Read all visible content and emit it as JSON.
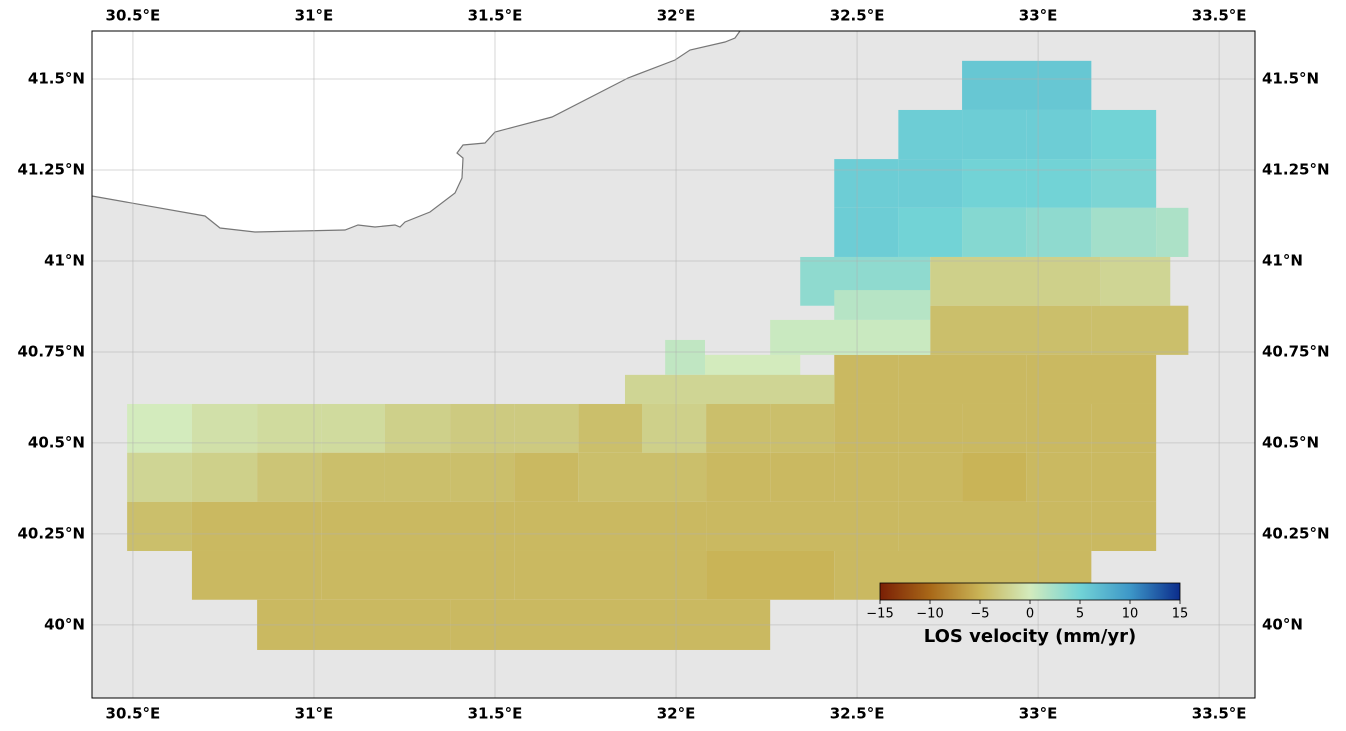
{
  "chart_data": {
    "type": "map",
    "xlim": [
      30.387,
      33.599
    ],
    "ylim": [
      39.799,
      41.632
    ],
    "xticks": [
      {
        "value": 30.5,
        "label": "30.5°E"
      },
      {
        "value": 31,
        "label": "31°E"
      },
      {
        "value": 31.5,
        "label": "31.5°E"
      },
      {
        "value": 32,
        "label": "32°E"
      },
      {
        "value": 32.5,
        "label": "32.5°E"
      },
      {
        "value": 33,
        "label": "33°E"
      },
      {
        "value": 33.5,
        "label": "33.5°E"
      }
    ],
    "yticks": [
      {
        "value": 40,
        "label": "40°N"
      },
      {
        "value": 40.25,
        "label": "40.25°N"
      },
      {
        "value": 40.5,
        "label": "40.5°N"
      },
      {
        "value": 40.75,
        "label": "40.75°N"
      },
      {
        "value": 41,
        "label": "41°N"
      },
      {
        "value": 41.25,
        "label": "41.25°N"
      },
      {
        "value": 41.5,
        "label": "41.5°N"
      }
    ],
    "grid": true,
    "colorbar": {
      "label": "LOS velocity (mm/yr)",
      "lim": [
        -15,
        15
      ],
      "colors": [
        "#7a1f05",
        "#a86818",
        "#c9b457",
        "#d3ebbd",
        "#72d3d6",
        "#3d97c8",
        "#0b2c8c"
      ],
      "ticks": [
        {
          "value": -15,
          "label": "−15"
        },
        {
          "value": -10,
          "label": "−10"
        },
        {
          "value": -5,
          "label": "−5"
        },
        0,
        5,
        10,
        15
      ]
    },
    "rows": [
      {
        "lat": [
          41.415,
          41.55
        ],
        "cells": [
          [
            32.79,
            33.147,
            6
          ]
        ]
      },
      {
        "lat": [
          41.28,
          41.415
        ],
        "cells": [
          [
            32.614,
            32.79,
            5.5
          ],
          [
            32.79,
            32.967,
            5.5
          ],
          [
            32.967,
            33.147,
            5.5
          ],
          [
            33.147,
            33.326,
            5
          ]
        ]
      },
      {
        "lat": [
          41.146,
          41.28
        ],
        "cells": [
          [
            32.437,
            32.614,
            5.5
          ],
          [
            32.614,
            32.79,
            5.5
          ],
          [
            32.79,
            32.967,
            5
          ],
          [
            32.967,
            33.147,
            5
          ],
          [
            33.147,
            33.326,
            4.5
          ]
        ]
      },
      {
        "lat": [
          41.011,
          41.146
        ],
        "cells": [
          [
            32.437,
            32.614,
            5.5
          ],
          [
            32.614,
            32.79,
            5
          ],
          [
            32.79,
            32.967,
            4
          ],
          [
            32.967,
            33.147,
            3.5
          ],
          [
            33.147,
            33.326,
            2.5
          ],
          [
            33.326,
            33.415,
            2
          ]
        ]
      },
      {
        "lat": [
          40.877,
          41.011
        ],
        "cells": [
          [
            32.343,
            32.702,
            3.5
          ],
          [
            32.702,
            33.172,
            -2.5
          ],
          [
            33.172,
            33.365,
            -2
          ]
        ]
      },
      {
        "lat": [
          40.742,
          40.877
        ],
        "cells": [
          [
            32.702,
            33.147,
            -4
          ],
          [
            33.147,
            33.415,
            -4
          ]
        ]
      },
      {
        "lat": [
          40.607,
          40.742
        ],
        "cells": [
          [
            32.437,
            32.614,
            -4.5
          ],
          [
            32.614,
            32.967,
            -4.5
          ],
          [
            32.967,
            33.326,
            -4.5
          ]
        ]
      },
      {
        "lat": [
          40.838,
          40.92
        ],
        "cells": [
          [
            32.437,
            32.702,
            1.5
          ]
        ]
      },
      {
        "lat": [
          40.742,
          40.838
        ],
        "cells": [
          [
            32.26,
            32.702,
            0.5
          ]
        ]
      },
      {
        "lat": [
          40.687,
          40.783
        ],
        "cells": [
          [
            31.97,
            32.08,
            1
          ]
        ]
      },
      {
        "lat": [
          40.673,
          40.742
        ],
        "cells": [
          [
            32.08,
            32.343,
            0
          ]
        ]
      },
      {
        "lat": [
          40.607,
          40.687
        ],
        "cells": [
          [
            31.859,
            32.437,
            -2
          ]
        ]
      },
      {
        "lat": [
          40.473,
          40.607
        ],
        "cells": [
          [
            30.484,
            30.663,
            0
          ],
          [
            30.663,
            30.843,
            -1
          ],
          [
            30.843,
            31.02,
            -1.5
          ],
          [
            31.02,
            31.196,
            -1.5
          ],
          [
            31.196,
            31.376,
            -2.5
          ],
          [
            31.376,
            31.553,
            -3
          ],
          [
            31.553,
            31.73,
            -3
          ],
          [
            31.73,
            31.906,
            -4
          ],
          [
            31.906,
            32.083,
            -2.5
          ],
          [
            32.083,
            32.26,
            -4
          ],
          [
            32.26,
            32.437,
            -4
          ],
          [
            32.437,
            32.614,
            -4.5
          ],
          [
            32.614,
            32.79,
            -4.5
          ],
          [
            32.79,
            32.967,
            -4.5
          ],
          [
            32.967,
            33.147,
            -4.5
          ],
          [
            33.147,
            33.326,
            -4.5
          ]
        ]
      },
      {
        "lat": [
          40.338,
          40.473
        ],
        "cells": [
          [
            30.484,
            30.663,
            -2
          ],
          [
            30.663,
            30.843,
            -2.5
          ],
          [
            30.843,
            31.02,
            -3.5
          ],
          [
            31.02,
            31.196,
            -4
          ],
          [
            31.196,
            31.376,
            -4
          ],
          [
            31.376,
            31.553,
            -4
          ],
          [
            31.553,
            31.73,
            -4.5
          ],
          [
            31.73,
            31.906,
            -4
          ],
          [
            31.906,
            32.083,
            -4
          ],
          [
            32.083,
            32.26,
            -4.5
          ],
          [
            32.26,
            32.437,
            -4.5
          ],
          [
            32.437,
            32.614,
            -4.5
          ],
          [
            32.614,
            32.79,
            -4.5
          ],
          [
            32.79,
            32.967,
            -5
          ],
          [
            32.967,
            33.147,
            -4.5
          ],
          [
            33.147,
            33.326,
            -4.5
          ]
        ]
      },
      {
        "lat": [
          40.203,
          40.338
        ],
        "cells": [
          [
            30.484,
            30.663,
            -4
          ],
          [
            30.663,
            31.02,
            -4.5
          ],
          [
            31.02,
            31.553,
            -4.5
          ],
          [
            31.553,
            32.083,
            -4.5
          ],
          [
            32.083,
            32.614,
            -4.5
          ],
          [
            32.614,
            33.147,
            -4.5
          ],
          [
            33.147,
            33.326,
            -4.5
          ]
        ]
      },
      {
        "lat": [
          40.069,
          40.203
        ],
        "cells": [
          [
            30.663,
            31.02,
            -4.5
          ],
          [
            31.02,
            31.553,
            -4.5
          ],
          [
            31.553,
            32.083,
            -4.5
          ],
          [
            32.083,
            32.437,
            -5
          ],
          [
            32.437,
            33.147,
            -4.5
          ]
        ]
      },
      {
        "lat": [
          39.931,
          40.069
        ],
        "cells": [
          [
            30.843,
            31.376,
            -4.5
          ],
          [
            31.376,
            31.906,
            -4.5
          ],
          [
            31.906,
            32.26,
            -4.5
          ]
        ]
      }
    ]
  }
}
